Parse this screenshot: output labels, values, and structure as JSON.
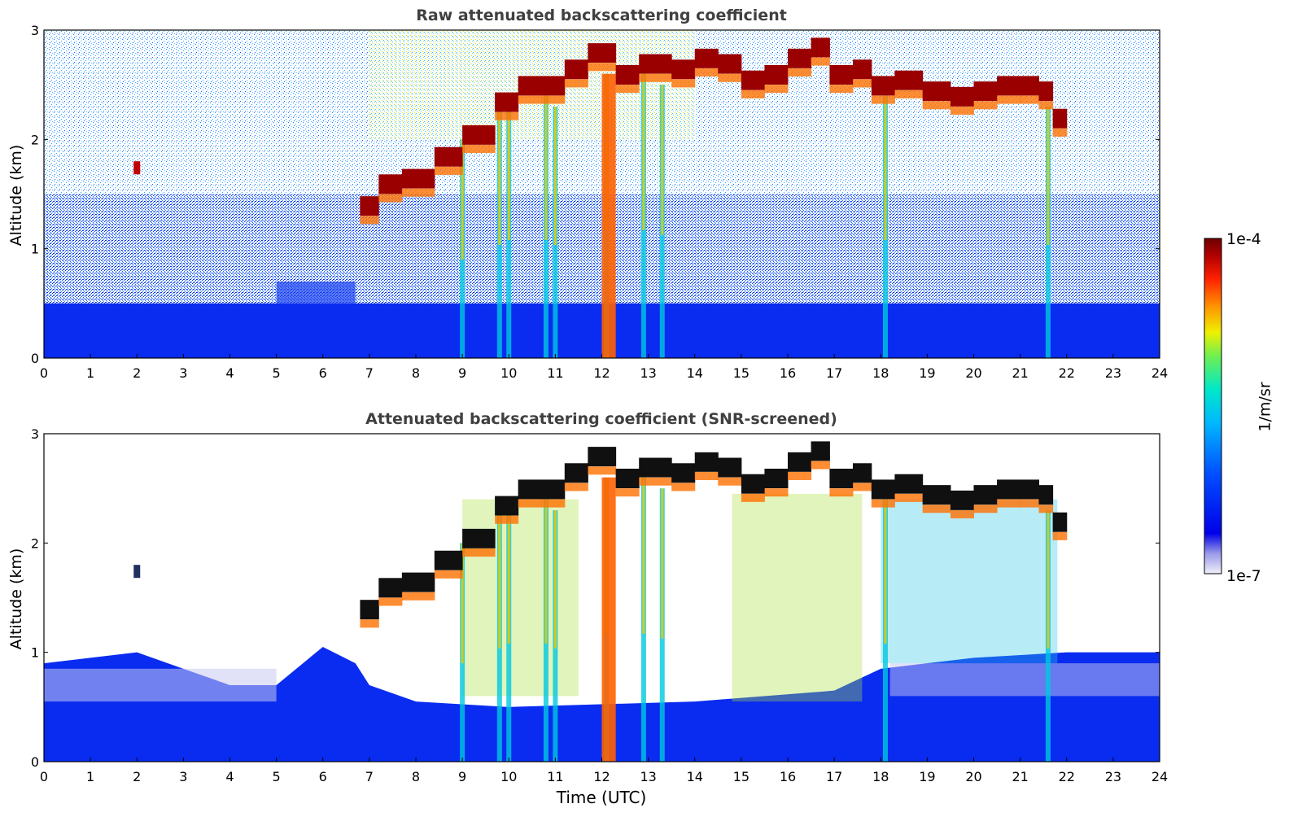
{
  "chart_data": [
    {
      "type": "heatmap",
      "title": "Raw attenuated backscattering coefficient",
      "xlabel": "",
      "ylabel": "Altitude (km)",
      "xlim": [
        0,
        24
      ],
      "ylim": [
        0,
        3
      ],
      "x_ticks": [
        "0",
        "1",
        "2",
        "3",
        "4",
        "5",
        "6",
        "7",
        "8",
        "9",
        "10",
        "11",
        "12",
        "13",
        "14",
        "15",
        "16",
        "17",
        "18",
        "19",
        "20",
        "21",
        "22",
        "23",
        "24"
      ],
      "y_ticks": [
        "0",
        "1",
        "2",
        "3"
      ],
      "screened": false,
      "cloud_top_km": [
        {
          "t": 2.0,
          "z": 1.75
        },
        {
          "t": 6.8,
          "z": 1.4
        },
        {
          "t": 7.2,
          "z": 1.6
        },
        {
          "t": 7.7,
          "z": 1.65
        },
        {
          "t": 8.4,
          "z": 1.85
        },
        {
          "t": 9.0,
          "z": 2.05
        },
        {
          "t": 9.7,
          "z": 2.35
        },
        {
          "t": 10.2,
          "z": 2.5
        },
        {
          "t": 10.7,
          "z": 2.5
        },
        {
          "t": 11.2,
          "z": 2.65
        },
        {
          "t": 11.7,
          "z": 2.8
        },
        {
          "t": 12.3,
          "z": 2.6
        },
        {
          "t": 12.8,
          "z": 2.7
        },
        {
          "t": 13.5,
          "z": 2.65
        },
        {
          "t": 14.0,
          "z": 2.75
        },
        {
          "t": 14.5,
          "z": 2.7
        },
        {
          "t": 15.0,
          "z": 2.55
        },
        {
          "t": 15.5,
          "z": 2.6
        },
        {
          "t": 16.0,
          "z": 2.75
        },
        {
          "t": 16.5,
          "z": 2.85
        },
        {
          "t": 16.9,
          "z": 2.6
        },
        {
          "t": 17.4,
          "z": 2.65
        },
        {
          "t": 17.8,
          "z": 2.5
        },
        {
          "t": 18.3,
          "z": 2.55
        },
        {
          "t": 18.9,
          "z": 2.45
        },
        {
          "t": 19.5,
          "z": 2.4
        },
        {
          "t": 20.0,
          "z": 2.45
        },
        {
          "t": 20.5,
          "z": 2.5
        },
        {
          "t": 21.0,
          "z": 2.5
        },
        {
          "t": 21.4,
          "z": 2.45
        },
        {
          "t": 21.7,
          "z": 2.2
        },
        {
          "t": 22.0,
          "z": 1.95
        }
      ],
      "fall_streaks": [
        {
          "t": 9.0,
          "top": 2.0
        },
        {
          "t": 9.8,
          "top": 2.3
        },
        {
          "t": 10.0,
          "top": 2.4
        },
        {
          "t": 10.8,
          "top": 2.4
        },
        {
          "t": 11.0,
          "top": 2.3
        },
        {
          "t": 12.1,
          "top": 2.6
        },
        {
          "t": 12.9,
          "top": 2.6
        },
        {
          "t": 13.3,
          "top": 2.5
        },
        {
          "t": 18.1,
          "top": 2.4
        },
        {
          "t": 21.6,
          "top": 2.3
        }
      ]
    },
    {
      "type": "heatmap",
      "title": "Attenuated backscattering coefficient (SNR-screened)",
      "xlabel": "Time (UTC)",
      "ylabel": "Altitude (km)",
      "xlim": [
        0,
        24
      ],
      "ylim": [
        0,
        3
      ],
      "x_ticks": [
        "0",
        "1",
        "2",
        "3",
        "4",
        "5",
        "6",
        "7",
        "8",
        "9",
        "10",
        "11",
        "12",
        "13",
        "14",
        "15",
        "16",
        "17",
        "18",
        "19",
        "20",
        "21",
        "22",
        "23",
        "24"
      ],
      "y_ticks": [
        "0",
        "1",
        "2",
        "3"
      ],
      "screened": true,
      "boundary_layer_top_km": [
        {
          "t": 0,
          "z": 0.9
        },
        {
          "t": 2,
          "z": 1.0
        },
        {
          "t": 3,
          "z": 0.85
        },
        {
          "t": 4,
          "z": 0.7
        },
        {
          "t": 5,
          "z": 0.7
        },
        {
          "t": 6,
          "z": 1.05
        },
        {
          "t": 6.7,
          "z": 0.9
        },
        {
          "t": 7,
          "z": 0.7
        },
        {
          "t": 8,
          "z": 0.55
        },
        {
          "t": 10,
          "z": 0.5
        },
        {
          "t": 14,
          "z": 0.55
        },
        {
          "t": 17,
          "z": 0.65
        },
        {
          "t": 18,
          "z": 0.85
        },
        {
          "t": 20,
          "z": 0.95
        },
        {
          "t": 22,
          "z": 1.0
        },
        {
          "t": 24,
          "z": 1.0
        }
      ]
    }
  ],
  "colorbar": {
    "label": "1/m/sr",
    "max_label": "1e-4",
    "min_label": "1e-7",
    "colors": [
      "#dcdcf0",
      "#9a9ae8",
      "#0000e8",
      "#0050ff",
      "#00a8ff",
      "#00e8d8",
      "#60f060",
      "#f0f000",
      "#ff8c00",
      "#ff1e00",
      "#a00000",
      "#6e0000"
    ]
  }
}
